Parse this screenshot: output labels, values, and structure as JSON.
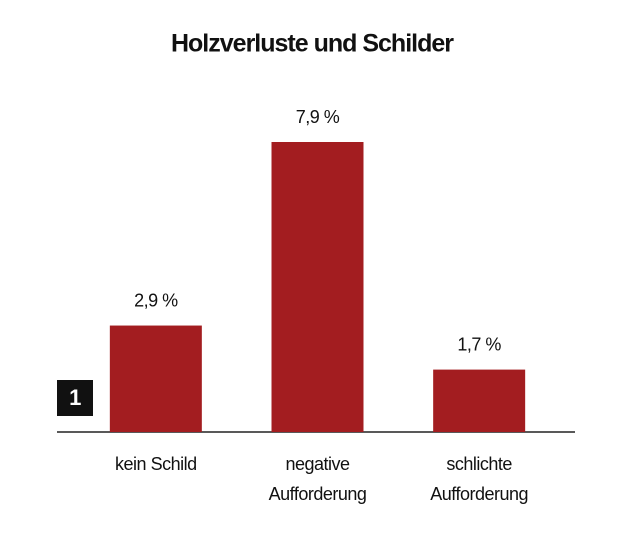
{
  "chart_data": {
    "type": "bar",
    "title": "Holzverluste und Schilder",
    "categories": [
      [
        "kein Schild"
      ],
      [
        "negative",
        "Aufforderung"
      ],
      [
        "schlichte",
        "Aufforderung"
      ]
    ],
    "values": [
      2.9,
      7.9,
      1.7
    ],
    "value_labels": [
      "2,9 %",
      "7,9 %",
      "1,7 %"
    ],
    "color": "#a31d20"
  },
  "badge": "1"
}
